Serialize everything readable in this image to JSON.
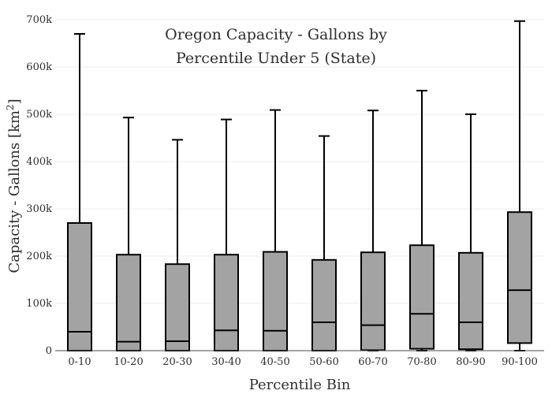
{
  "chart_data": {
    "type": "box",
    "title": [
      "Oregon Capacity - Gallons by",
      "Percentile Under 5 (State)"
    ],
    "xlabel": "Percentile Bin",
    "ylabel": "Capacity - Gallons  [km",
    "ylabel_superscript": "2",
    "ylabel_suffix": "]",
    "ylim": [
      0,
      700000
    ],
    "y_ticks": [
      0,
      100000,
      200000,
      300000,
      400000,
      500000,
      600000,
      700000
    ],
    "y_tick_labels": [
      "0",
      "100k",
      "200k",
      "300k",
      "400k",
      "500k",
      "600k",
      "700k"
    ],
    "grid": true,
    "box_color": "#a3a3a3",
    "categories": [
      "0-10",
      "10-20",
      "20-30",
      "30-40",
      "40-50",
      "50-60",
      "60-70",
      "70-80",
      "80-90",
      "90-100"
    ],
    "boxes": [
      {
        "min": 0,
        "q1": 0,
        "median": 40000,
        "q3": 270000,
        "max": 670000
      },
      {
        "min": 0,
        "q1": 0,
        "median": 19000,
        "q3": 203000,
        "max": 493000
      },
      {
        "min": 0,
        "q1": 0,
        "median": 20000,
        "q3": 183000,
        "max": 446000
      },
      {
        "min": 0,
        "q1": 0,
        "median": 43000,
        "q3": 203000,
        "max": 489000
      },
      {
        "min": 0,
        "q1": 0,
        "median": 42000,
        "q3": 209000,
        "max": 509000
      },
      {
        "min": 0,
        "q1": 0,
        "median": 60000,
        "q3": 192000,
        "max": 454000
      },
      {
        "min": 0,
        "q1": 1000,
        "median": 54000,
        "q3": 208000,
        "max": 508000
      },
      {
        "min": 0,
        "q1": 4000,
        "median": 78000,
        "q3": 223000,
        "max": 550000
      },
      {
        "min": 0,
        "q1": 3000,
        "median": 60000,
        "q3": 207000,
        "max": 500000
      },
      {
        "min": 0,
        "q1": 16000,
        "median": 128000,
        "q3": 293000,
        "max": 697000
      }
    ]
  }
}
